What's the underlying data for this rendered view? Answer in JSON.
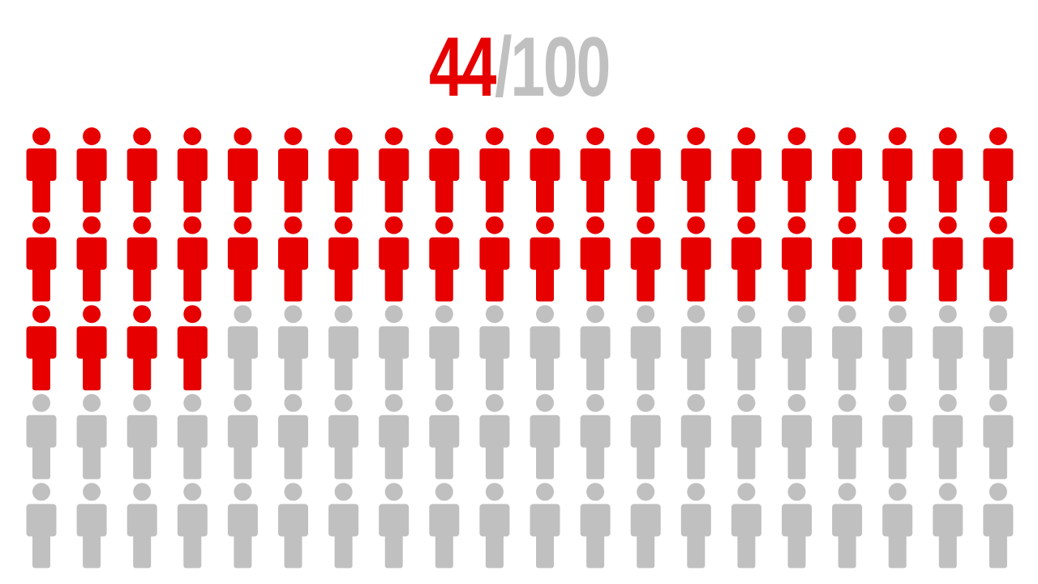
{
  "chart_data": {
    "type": "pictogram",
    "title_value": "44",
    "title_separator": "/",
    "title_total": "100",
    "value": 44,
    "total": 100,
    "columns": 20,
    "rows": 5,
    "fill_order": "row-major",
    "icon": "person-icon",
    "colors": {
      "highlight": "#e60000",
      "base": "#c0c0c0"
    }
  }
}
